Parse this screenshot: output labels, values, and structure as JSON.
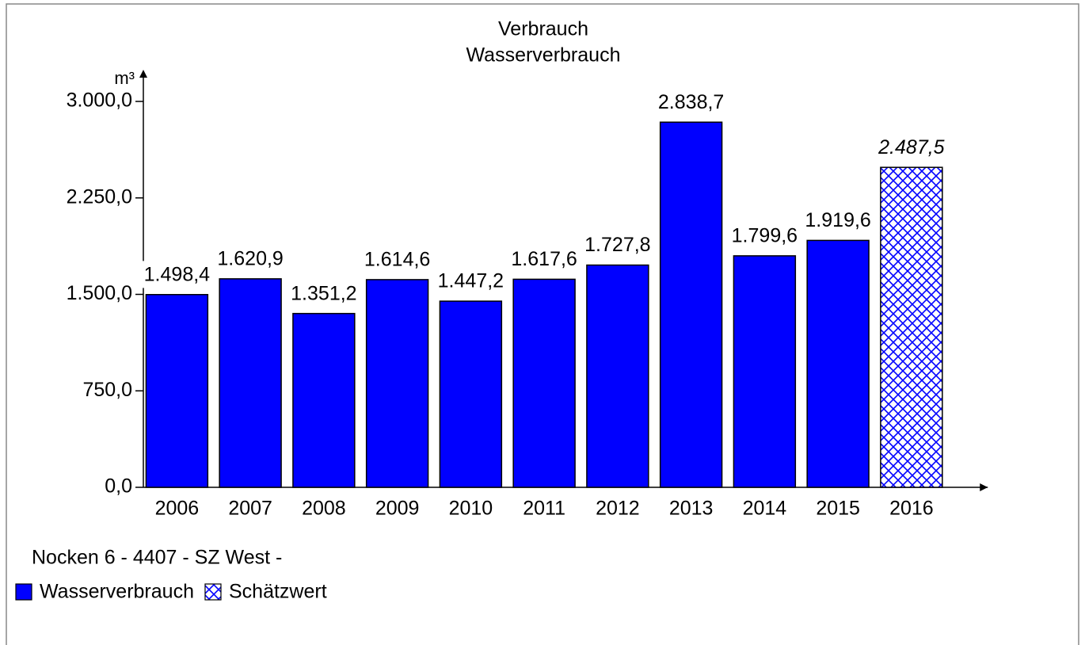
{
  "chart_data": {
    "type": "bar",
    "title": "Verbrauch",
    "subtitle": "Wasserverbrauch",
    "y_label": "m³",
    "footer": "Nocken 6 - 4407 - SZ West -",
    "categories": [
      "2006",
      "2007",
      "2008",
      "2009",
      "2010",
      "2011",
      "2012",
      "2013",
      "2014",
      "2015",
      "2016"
    ],
    "series": [
      {
        "name": "Wasserverbrauch",
        "color": "#0000ff",
        "hatch": false,
        "values": [
          1498.4,
          1620.9,
          1351.2,
          1614.6,
          1447.2,
          1617.6,
          1727.8,
          2838.7,
          1799.6,
          1919.6,
          null
        ],
        "value_labels": [
          "1.498,4",
          "1.620,9",
          "1.351,2",
          "1.614,6",
          "1.447,2",
          "1.617,6",
          "1.727,8",
          "2.838,7",
          "1.799,6",
          "1.919,6",
          null
        ]
      },
      {
        "name": "Schätzwert",
        "color": "#0000ff",
        "hatch": true,
        "values": [
          null,
          null,
          null,
          null,
          null,
          null,
          null,
          null,
          null,
          null,
          2487.5
        ],
        "value_labels": [
          null,
          null,
          null,
          null,
          null,
          null,
          null,
          null,
          null,
          null,
          "2.487,5"
        ]
      }
    ],
    "ylim": [
      0,
      3000
    ],
    "yticks": [
      {
        "value": 0,
        "label": "0,0"
      },
      {
        "value": 750,
        "label": "750,0"
      },
      {
        "value": 1500,
        "label": "1.500,0"
      },
      {
        "value": 2250,
        "label": "2.250,0"
      },
      {
        "value": 3000,
        "label": "3.000,0"
      }
    ],
    "grid": false
  }
}
